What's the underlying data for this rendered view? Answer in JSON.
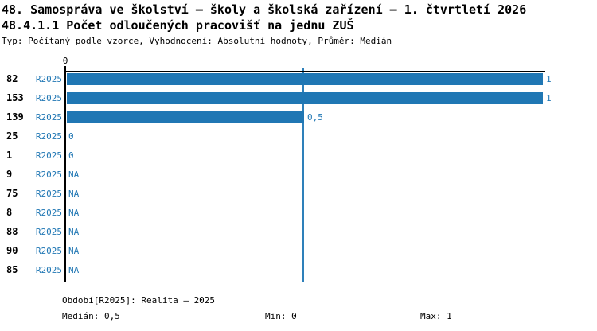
{
  "header": {
    "title_line1": "48. Samospráva ve školství – školy a školská zařízení – 1. čtvrtletí 2026",
    "title_line2": "48.4.1.1 Počet odloučených pracovišť na jednu ZUŠ",
    "subtitle": "Typ: Počítaný podle vzorce, Vyhodnocení: Absolutní hodnoty, Průměr: Medián"
  },
  "chart_data": {
    "type": "bar",
    "orientation": "horizontal",
    "categories": [
      "82",
      "153",
      "139",
      "25",
      "1",
      "9",
      "75",
      "8",
      "88",
      "90",
      "85"
    ],
    "series_label": "R2025",
    "values": [
      1,
      1,
      0.5,
      0,
      0,
      null,
      null,
      null,
      null,
      null,
      null
    ],
    "value_labels": [
      "1",
      "1",
      "0,5",
      "0",
      "0",
      "NA",
      "NA",
      "NA",
      "NA",
      "NA",
      "NA"
    ],
    "title": "48.4.1.1 Počet odloučených pracovišť na jednu ZUŠ",
    "xlabel": "",
    "ylabel": "",
    "xlim": [
      0,
      1
    ],
    "x_ticks": [
      "0"
    ],
    "median_marker": 0.5,
    "legend_position": "bottom",
    "grid": false,
    "colors": {
      "bar": "#2077b4",
      "value_text": "#2077b4",
      "series_text": "#2077b4",
      "median_line": "#2e80ba",
      "axis": "#000000",
      "category_text": "#000000"
    }
  },
  "footer": {
    "period": "Období[R2025]: Realita – 2025",
    "median": "Medián: 0,5",
    "min": "Min: 0",
    "max": "Max: 1"
  }
}
